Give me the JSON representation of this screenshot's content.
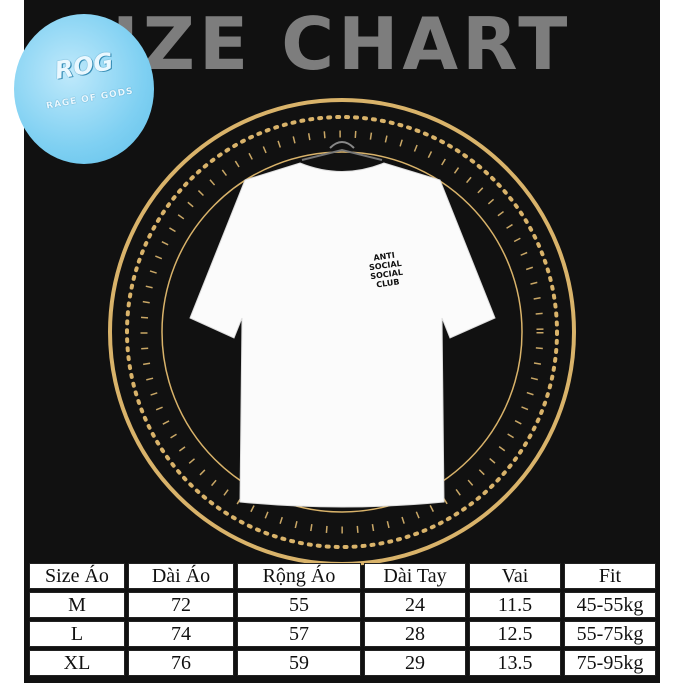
{
  "header": {
    "title": "IZE CHART"
  },
  "logo": {
    "main": "ROG",
    "sub": "RAGE OF GODS"
  },
  "product": {
    "print_lines": [
      "ANTI",
      "SOCIAL",
      "SOCIAL",
      "CLUB"
    ]
  },
  "colors": {
    "background": "#111111",
    "ring": "#d9b36a",
    "title": "#7d7d7d",
    "logo": "#7fd0f2"
  },
  "size_table": {
    "headers": [
      "Size Áo",
      "Dài Áo",
      "Rộng Áo",
      "Dài Tay",
      "Vai",
      "Fit"
    ],
    "rows": [
      [
        "M",
        "72",
        "55",
        "24",
        "11.5",
        "45-55kg"
      ],
      [
        "L",
        "74",
        "57",
        "28",
        "12.5",
        "55-75kg"
      ],
      [
        "XL",
        "76",
        "59",
        "29",
        "13.5",
        "75-95kg"
      ]
    ]
  }
}
